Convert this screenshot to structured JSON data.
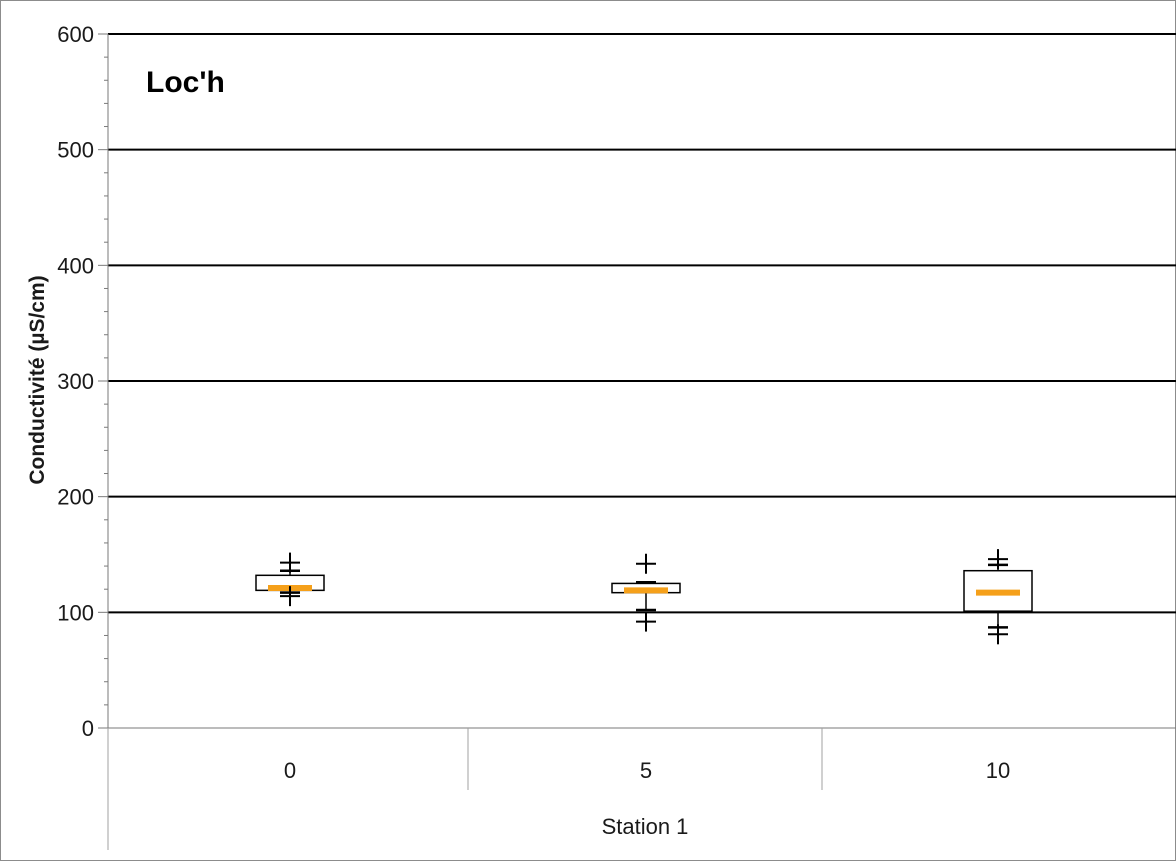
{
  "chart_data": {
    "type": "box",
    "title": "Loc'h",
    "ylabel": "Conductivité (µS/cm)",
    "xlabel": "Station 1",
    "ylim": [
      0,
      600
    ],
    "yticks": [
      0,
      100,
      200,
      300,
      400,
      500,
      600
    ],
    "grid": true,
    "legend": "none",
    "categories": [
      "0",
      "5",
      "10"
    ],
    "boxes": [
      {
        "category": "0",
        "q1": 119,
        "median": 121,
        "q3": 132,
        "whisker_low": 117,
        "whisker_high": 136,
        "outliers": [
          143,
          114
        ]
      },
      {
        "category": "5",
        "q1": 117,
        "median": 119,
        "q3": 125,
        "whisker_low": 102,
        "whisker_high": 126,
        "outliers": [
          142,
          92
        ]
      },
      {
        "category": "10",
        "q1": 101,
        "median": 117,
        "q3": 136,
        "whisker_low": 87,
        "whisker_high": 141,
        "outliers": [
          146,
          81
        ]
      }
    ],
    "colors": {
      "median": "#f5a01a",
      "box": "#000000",
      "grid": "#000000"
    }
  }
}
